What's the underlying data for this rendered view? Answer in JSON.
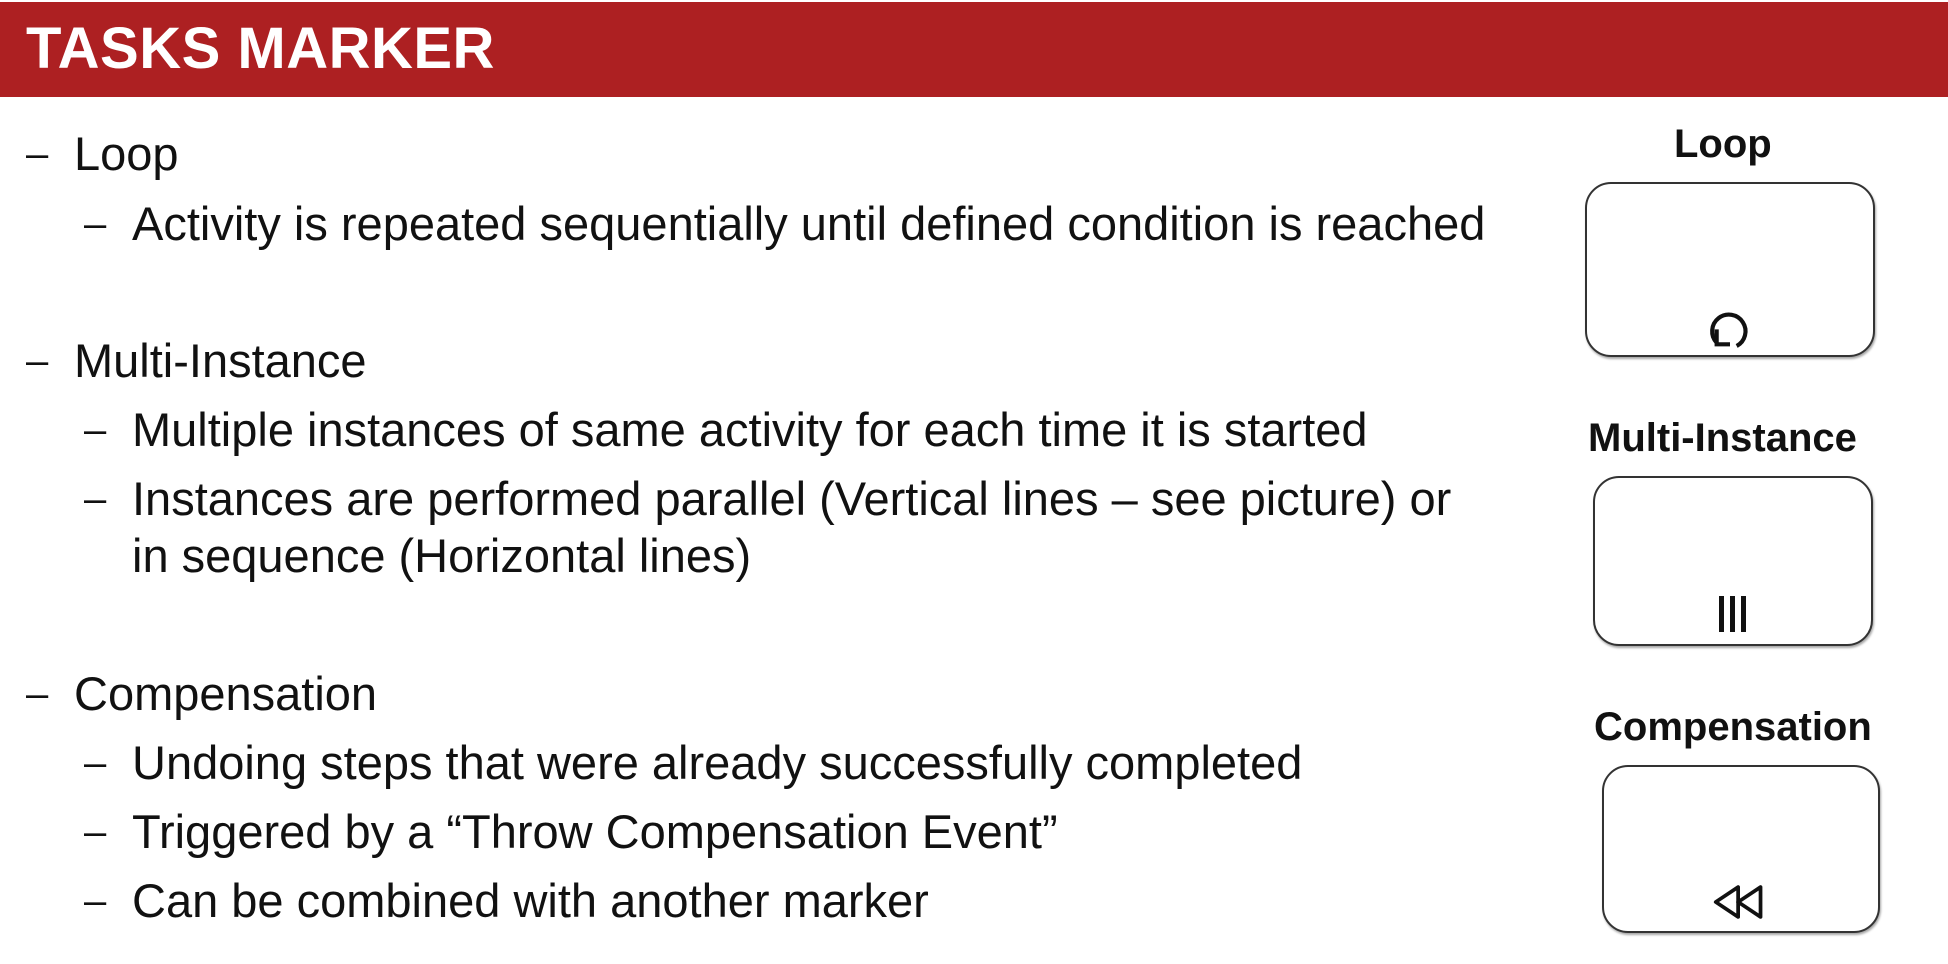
{
  "header": {
    "title": "TASKS MARKER"
  },
  "content": {
    "dash": "–",
    "sections": [
      {
        "heading": "Loop",
        "points": [
          "Activity is repeated sequentially until defined condition is reached"
        ]
      },
      {
        "heading": "Multi-Instance",
        "points": [
          "Multiple instances of same activity for each time it is started",
          "Instances are performed parallel (Vertical lines – see picture) or",
          "in sequence (Horizontal lines)"
        ]
      },
      {
        "heading": "Compensation",
        "points": [
          "Undoing steps that were already successfully completed",
          "Triggered by a “Throw Compensation Event”",
          "Can be combined with another marker"
        ]
      }
    ]
  },
  "markers": [
    {
      "label": "Loop",
      "icon": "loop-icon"
    },
    {
      "label": "Multi-Instance",
      "icon": "parallel-multi-instance-icon"
    },
    {
      "label": "Compensation",
      "icon": "compensation-icon"
    }
  ],
  "colors": {
    "header_background": "#ad2022",
    "header_text": "#ffffff",
    "body_text": "#111111"
  }
}
